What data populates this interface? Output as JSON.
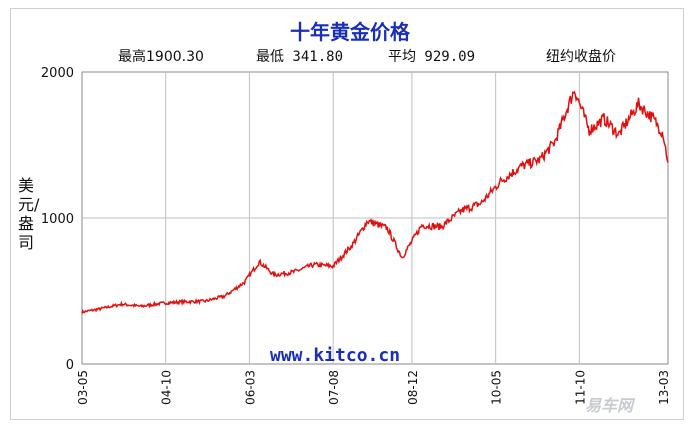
{
  "chart_data": {
    "type": "line",
    "title": "十年黄金价格",
    "stats": {
      "high": "最高1900.30",
      "low": "最低 341.80",
      "avg": "平均 929.09"
    },
    "series_label": "纽约收盘价",
    "ylabel": "美元/盎司",
    "ylim": [
      0,
      2000
    ],
    "yticks": [
      "0",
      "1000",
      "2000"
    ],
    "xticks": [
      "03-05",
      "04-10",
      "06-03",
      "07-08",
      "08-12",
      "10-05",
      "11-10",
      "13-03"
    ],
    "xrange": [
      "2003-05",
      "2013-04"
    ],
    "grid": true,
    "website": "www.kitco.cn",
    "color": "#e01010",
    "series": [
      {
        "x": [
          "2003-05",
          "2003-09",
          "2004-01",
          "2004-05",
          "2004-09",
          "2005-01",
          "2005-06",
          "2005-10",
          "2006-02",
          "2006-05",
          "2006-08",
          "2006-12",
          "2007-04",
          "2007-08",
          "2007-12",
          "2008-03",
          "2008-07",
          "2008-10",
          "2009-02",
          "2009-06",
          "2009-10",
          "2010-02",
          "2010-06",
          "2010-10",
          "2011-02",
          "2011-05",
          "2011-09",
          "2011-12",
          "2012-03",
          "2012-06",
          "2012-10",
          "2013-01",
          "2013-03",
          "2013-04"
        ],
        "values": [
          355,
          380,
          410,
          395,
          415,
          425,
          430,
          465,
          560,
          700,
          610,
          630,
          680,
          670,
          820,
          980,
          930,
          730,
          950,
          940,
          1050,
          1100,
          1250,
          1350,
          1400,
          1520,
          1880,
          1600,
          1680,
          1570,
          1780,
          1680,
          1580,
          1380
        ]
      }
    ]
  },
  "watermark": "易车网"
}
